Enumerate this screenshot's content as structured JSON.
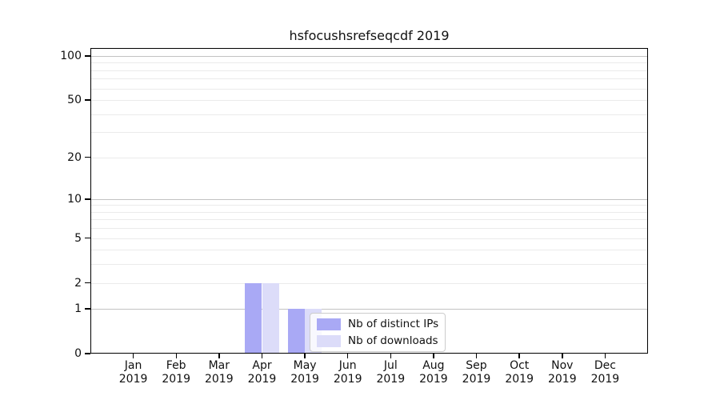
{
  "title": "hsfocushsrefseqcdf 2019",
  "chart_data": {
    "type": "bar",
    "title": "hsfocushsrefseqcdf 2019",
    "categories": [
      "Jan",
      "Feb",
      "Mar",
      "Apr",
      "May",
      "Jun",
      "Jul",
      "Aug",
      "Sep",
      "Oct",
      "Nov",
      "Dec"
    ],
    "year": "2019",
    "series": [
      {
        "name": "Nb of distinct IPs",
        "color": "#a9a9f5",
        "values": [
          0,
          0,
          0,
          2,
          1,
          0,
          0,
          0,
          0,
          0,
          0,
          0
        ]
      },
      {
        "name": "Nb of downloads",
        "color": "#dcdcf9",
        "values": [
          0,
          0,
          0,
          2,
          1,
          0,
          0,
          0,
          0,
          0,
          0,
          0
        ]
      }
    ],
    "yscale": "log1p",
    "ylim": [
      0,
      113
    ],
    "yticks": [
      0,
      1,
      2,
      5,
      10,
      20,
      50,
      100
    ],
    "major_gridlines": [
      1,
      10,
      100
    ],
    "minor_gridlines": [
      2,
      3,
      4,
      5,
      6,
      7,
      8,
      9,
      20,
      30,
      40,
      50,
      60,
      70,
      80,
      90
    ],
    "grid": true,
    "legend_position": "lower-right-inside",
    "background_color": "#ffffff",
    "axis_color": "#000000"
  }
}
